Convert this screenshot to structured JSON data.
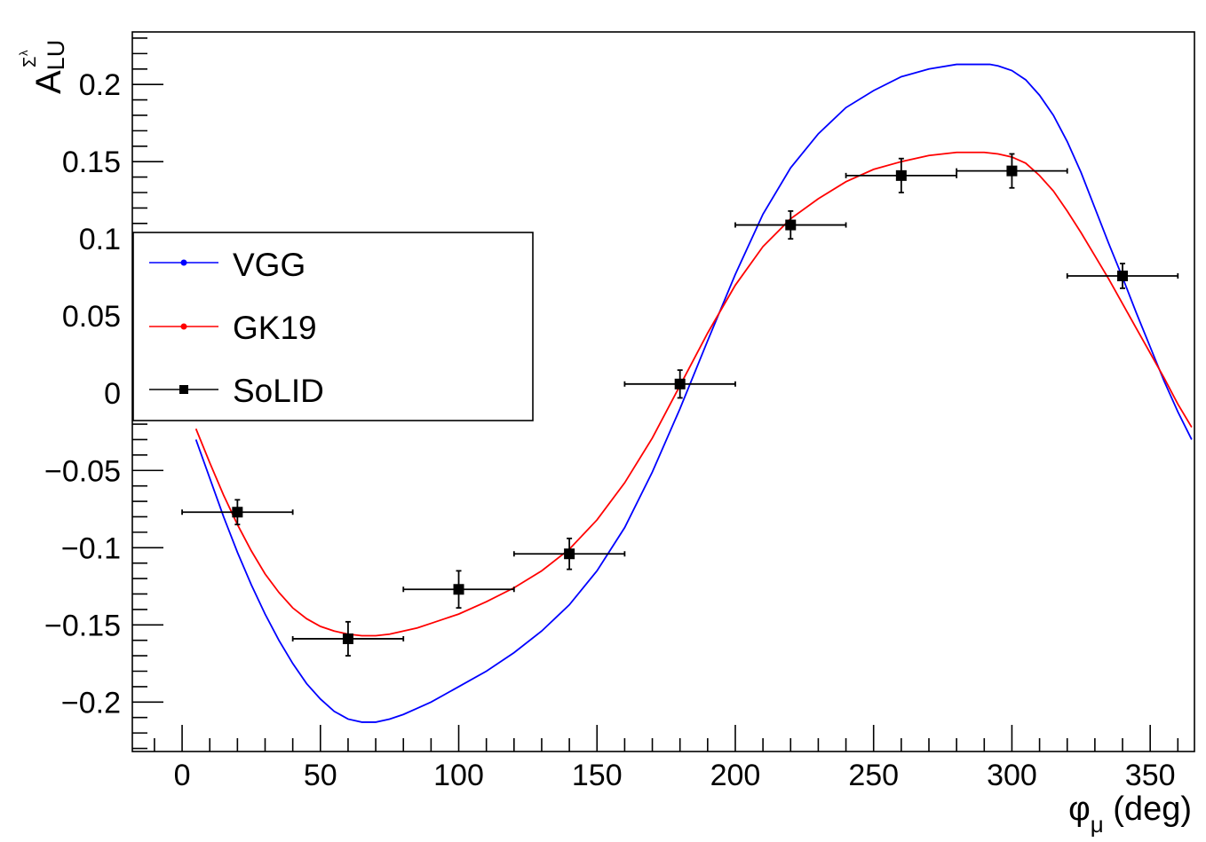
{
  "chart_data": {
    "type": "scatter",
    "title": "",
    "xlabel": {
      "main": "φ",
      "sub": "μ",
      "suffix": " (deg)"
    },
    "ylabel": {
      "main": "A",
      "sub": "LU",
      "sup": "Σ",
      "supsup": "λ"
    },
    "xlim": [
      -18,
      366
    ],
    "ylim": [
      -0.232,
      0.234
    ],
    "x_ticks": [
      0,
      50,
      100,
      150,
      200,
      250,
      300,
      350
    ],
    "x_tick_labels": [
      "0",
      "50",
      "100",
      "150",
      "200",
      "250",
      "300",
      "350"
    ],
    "y_ticks": [
      -0.2,
      -0.15,
      -0.1,
      -0.05,
      0,
      0.05,
      0.1,
      0.15,
      0.2
    ],
    "y_tick_labels": [
      "−0.2",
      "−0.15",
      "−0.1",
      "−0.05",
      "0",
      "0.05",
      "0.1",
      "0.15",
      "0.2"
    ],
    "grid": false,
    "legend_position": "left-middle",
    "legend": [
      {
        "label": "VGG",
        "color": "#0000ff",
        "marker": "circle"
      },
      {
        "label": "GK19",
        "color": "#ff0000",
        "marker": "circle"
      },
      {
        "label": "SoLID",
        "color": "#000000",
        "marker": "square"
      }
    ],
    "series": [
      {
        "name": "VGG",
        "kind": "line",
        "color": "#0000ff",
        "x": [
          5,
          10,
          15,
          20,
          25,
          30,
          35,
          40,
          45,
          50,
          55,
          60,
          65,
          70,
          75,
          80,
          85,
          90,
          95,
          100,
          110,
          120,
          130,
          140,
          150,
          160,
          170,
          180,
          190,
          200,
          210,
          220,
          230,
          240,
          250,
          260,
          270,
          280,
          290,
          292,
          295,
          300,
          305,
          310,
          315,
          320,
          325,
          330,
          335,
          340,
          345,
          350,
          355,
          360,
          365
        ],
        "y": [
          -0.03,
          -0.055,
          -0.08,
          -0.103,
          -0.124,
          -0.143,
          -0.16,
          -0.175,
          -0.188,
          -0.198,
          -0.206,
          -0.211,
          -0.213,
          -0.213,
          -0.211,
          -0.208,
          -0.204,
          -0.2,
          -0.195,
          -0.19,
          -0.18,
          -0.168,
          -0.154,
          -0.137,
          -0.115,
          -0.087,
          -0.051,
          -0.01,
          0.034,
          0.077,
          0.116,
          0.146,
          0.168,
          0.185,
          0.196,
          0.205,
          0.21,
          0.213,
          0.213,
          0.213,
          0.212,
          0.209,
          0.203,
          0.193,
          0.18,
          0.163,
          0.143,
          0.12,
          0.097,
          0.075,
          0.052,
          0.03,
          0.008,
          -0.012,
          -0.03
        ]
      },
      {
        "name": "GK19",
        "kind": "line",
        "color": "#ff0000",
        "x": [
          5,
          10,
          15,
          20,
          25,
          30,
          35,
          40,
          45,
          50,
          55,
          60,
          65,
          70,
          75,
          80,
          85,
          90,
          95,
          100,
          110,
          120,
          130,
          140,
          150,
          160,
          170,
          180,
          190,
          200,
          210,
          220,
          230,
          240,
          250,
          260,
          270,
          280,
          290,
          295,
          300,
          305,
          310,
          315,
          320,
          325,
          330,
          335,
          340,
          345,
          350,
          355,
          360,
          365
        ],
        "y": [
          -0.023,
          -0.045,
          -0.066,
          -0.085,
          -0.102,
          -0.117,
          -0.129,
          -0.139,
          -0.146,
          -0.151,
          -0.154,
          -0.156,
          -0.157,
          -0.157,
          -0.156,
          -0.154,
          -0.152,
          -0.149,
          -0.146,
          -0.143,
          -0.135,
          -0.126,
          -0.115,
          -0.101,
          -0.082,
          -0.058,
          -0.029,
          0.005,
          0.039,
          0.07,
          0.095,
          0.113,
          0.126,
          0.137,
          0.145,
          0.15,
          0.154,
          0.156,
          0.156,
          0.155,
          0.153,
          0.149,
          0.141,
          0.131,
          0.118,
          0.104,
          0.089,
          0.074,
          0.058,
          0.042,
          0.026,
          0.01,
          -0.007,
          -0.022
        ]
      },
      {
        "name": "SoLID",
        "kind": "points",
        "color": "#000000",
        "x": [
          20,
          60,
          100,
          140,
          180,
          220,
          260,
          300,
          340
        ],
        "y": [
          -0.077,
          -0.159,
          -0.127,
          -0.104,
          0.006,
          0.109,
          0.141,
          0.144,
          0.076
        ],
        "x_err": [
          20,
          20,
          20,
          20,
          20,
          20,
          20,
          20,
          20
        ],
        "y_err": [
          0.008,
          0.011,
          0.012,
          0.01,
          0.009,
          0.009,
          0.011,
          0.011,
          0.008
        ]
      }
    ]
  }
}
